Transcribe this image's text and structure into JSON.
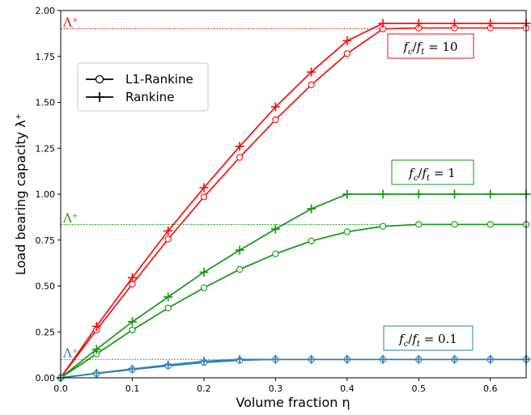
{
  "chart_data": {
    "type": "line",
    "xlabel": "Volume fraction η",
    "ylabel": "Load bearing capacity λ⁺",
    "xlim": [
      0,
      0.65
    ],
    "ylim": [
      0,
      2.0
    ],
    "xticks": [
      "0.0",
      "0.1",
      "0.2",
      "0.3",
      "0.4",
      "0.5",
      "0.6"
    ],
    "yticks": [
      "0.00",
      "0.25",
      "0.50",
      "0.75",
      "1.00",
      "1.25",
      "1.50",
      "1.75",
      "2.00"
    ],
    "grid": false,
    "legend": {
      "placement": "upper-left",
      "entries": [
        "L1-Rankine",
        "Rankine"
      ]
    },
    "x": [
      0,
      0.05,
      0.1,
      0.15,
      0.2,
      0.25,
      0.3,
      0.35,
      0.4,
      0.45,
      0.5,
      0.55,
      0.6,
      0.65
    ],
    "groups": [
      {
        "label": "f_c/f_t = 10",
        "color": "#ee1111",
        "reference_label": "Λ⁺",
        "reference_value": 1.9,
        "l1_rankine": [
          0,
          0.26,
          0.51,
          0.755,
          0.985,
          1.2,
          1.405,
          1.595,
          1.765,
          1.9,
          1.905,
          1.905,
          1.905,
          1.905
        ],
        "rankine": [
          0,
          0.28,
          0.545,
          0.8,
          1.035,
          1.26,
          1.475,
          1.665,
          1.835,
          1.93,
          1.93,
          1.93,
          1.93,
          1.93
        ]
      },
      {
        "label": "f_c/f_t = 1",
        "color": "#119911",
        "reference_label": "Λ⁺",
        "reference_value": 0.835,
        "l1_rankine": [
          0,
          0.13,
          0.26,
          0.38,
          0.49,
          0.59,
          0.675,
          0.745,
          0.795,
          0.825,
          0.835,
          0.835,
          0.835,
          0.835
        ],
        "rankine": [
          0,
          0.155,
          0.305,
          0.44,
          0.575,
          0.695,
          0.81,
          0.92,
          1.0,
          1.0,
          1.0,
          1.0,
          1.0,
          1.0
        ]
      },
      {
        "label": "f_c/f_t = 0.1",
        "color": "#2a80b9",
        "reference_label": "Λ⁺",
        "reference_value": 0.1,
        "l1_rankine": [
          0,
          0.023,
          0.045,
          0.065,
          0.083,
          0.095,
          0.1,
          0.1,
          0.1,
          0.1,
          0.1,
          0.1,
          0.1,
          0.1
        ],
        "rankine": [
          0,
          0.025,
          0.048,
          0.07,
          0.09,
          0.1,
          0.1,
          0.1,
          0.1,
          0.1,
          0.1,
          0.1,
          0.1,
          0.1
        ]
      }
    ]
  },
  "annotations": {
    "box_red": {
      "num": "f",
      "num_sub": "c",
      "den": "f",
      "den_sub": "t",
      "eq": " = 10"
    },
    "box_green": {
      "num": "f",
      "num_sub": "c",
      "den": "f",
      "den_sub": "t",
      "eq": " = 1"
    },
    "box_blue": {
      "num": "f",
      "num_sub": "c",
      "den": "f",
      "den_sub": "t",
      "eq": " = 0.1"
    }
  }
}
